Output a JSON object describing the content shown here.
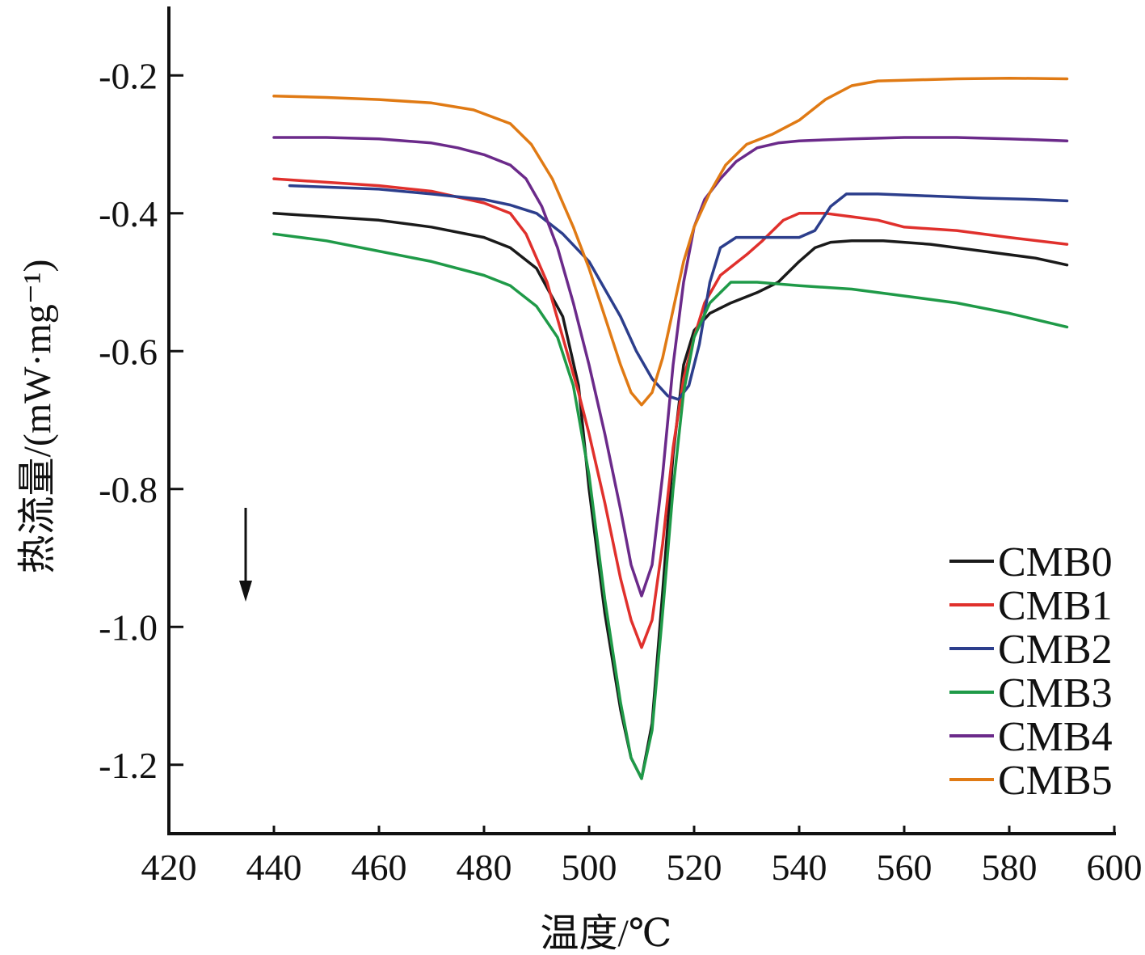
{
  "chart_data": {
    "type": "line",
    "xlabel": "温度/℃",
    "ylabel": "热流量/(mW·mg⁻¹)",
    "xlim": [
      420,
      600
    ],
    "ylim": [
      -1.3,
      -0.1
    ],
    "xticks": [
      420,
      440,
      460,
      480,
      500,
      520,
      540,
      560,
      580,
      600
    ],
    "yticks": [
      -1.2,
      -1.0,
      -0.8,
      -0.6,
      -0.4,
      -0.2
    ],
    "xtick_labels": [
      "420",
      "440",
      "460",
      "480",
      "500",
      "520",
      "540",
      "560",
      "580",
      "600"
    ],
    "ytick_labels": [
      "-1.2",
      "-1.0",
      "-0.8",
      "-0.6",
      "-0.4",
      "-0.2"
    ],
    "grid": false,
    "legend_position": "bottom-right",
    "annotation": "downward arrow (exotherm direction)",
    "series": [
      {
        "name": "CMB0",
        "color": "#1a1a1a",
        "points": [
          [
            440,
            -0.4
          ],
          [
            450,
            -0.405
          ],
          [
            460,
            -0.41
          ],
          [
            470,
            -0.42
          ],
          [
            480,
            -0.435
          ],
          [
            485,
            -0.45
          ],
          [
            490,
            -0.48
          ],
          [
            495,
            -0.55
          ],
          [
            498,
            -0.65
          ],
          [
            500,
            -0.8
          ],
          [
            503,
            -0.98
          ],
          [
            506,
            -1.12
          ],
          [
            508,
            -1.19
          ],
          [
            510,
            -1.22
          ],
          [
            512,
            -1.14
          ],
          [
            514,
            -0.95
          ],
          [
            516,
            -0.75
          ],
          [
            518,
            -0.62
          ],
          [
            520,
            -0.57
          ],
          [
            523,
            -0.545
          ],
          [
            527,
            -0.53
          ],
          [
            532,
            -0.515
          ],
          [
            536,
            -0.5
          ],
          [
            540,
            -0.47
          ],
          [
            543,
            -0.45
          ],
          [
            546,
            -0.442
          ],
          [
            550,
            -0.44
          ],
          [
            556,
            -0.44
          ],
          [
            565,
            -0.445
          ],
          [
            575,
            -0.455
          ],
          [
            585,
            -0.465
          ],
          [
            591,
            -0.475
          ]
        ]
      },
      {
        "name": "CMB1",
        "color": "#e0302c",
        "points": [
          [
            440,
            -0.35
          ],
          [
            450,
            -0.355
          ],
          [
            460,
            -0.36
          ],
          [
            470,
            -0.368
          ],
          [
            480,
            -0.385
          ],
          [
            485,
            -0.4
          ],
          [
            488,
            -0.43
          ],
          [
            492,
            -0.5
          ],
          [
            495,
            -0.58
          ],
          [
            498,
            -0.66
          ],
          [
            500,
            -0.72
          ],
          [
            503,
            -0.82
          ],
          [
            506,
            -0.93
          ],
          [
            508,
            -0.99
          ],
          [
            510,
            -1.03
          ],
          [
            512,
            -0.99
          ],
          [
            514,
            -0.88
          ],
          [
            516,
            -0.74
          ],
          [
            518,
            -0.64
          ],
          [
            520,
            -0.58
          ],
          [
            522,
            -0.53
          ],
          [
            525,
            -0.49
          ],
          [
            530,
            -0.46
          ],
          [
            533,
            -0.44
          ],
          [
            537,
            -0.41
          ],
          [
            540,
            -0.4
          ],
          [
            545,
            -0.4
          ],
          [
            550,
            -0.405
          ],
          [
            555,
            -0.41
          ],
          [
            560,
            -0.42
          ],
          [
            570,
            -0.425
          ],
          [
            580,
            -0.435
          ],
          [
            591,
            -0.445
          ]
        ]
      },
      {
        "name": "CMB2",
        "color": "#2c3e8c",
        "points": [
          [
            443,
            -0.36
          ],
          [
            450,
            -0.362
          ],
          [
            460,
            -0.365
          ],
          [
            470,
            -0.372
          ],
          [
            480,
            -0.38
          ],
          [
            485,
            -0.388
          ],
          [
            490,
            -0.4
          ],
          [
            495,
            -0.43
          ],
          [
            500,
            -0.47
          ],
          [
            503,
            -0.51
          ],
          [
            506,
            -0.55
          ],
          [
            509,
            -0.6
          ],
          [
            512,
            -0.64
          ],
          [
            515,
            -0.665
          ],
          [
            517,
            -0.67
          ],
          [
            519,
            -0.65
          ],
          [
            521,
            -0.59
          ],
          [
            523,
            -0.5
          ],
          [
            525,
            -0.45
          ],
          [
            528,
            -0.435
          ],
          [
            533,
            -0.435
          ],
          [
            540,
            -0.435
          ],
          [
            543,
            -0.425
          ],
          [
            546,
            -0.39
          ],
          [
            549,
            -0.372
          ],
          [
            555,
            -0.372
          ],
          [
            565,
            -0.375
          ],
          [
            575,
            -0.378
          ],
          [
            585,
            -0.38
          ],
          [
            591,
            -0.382
          ]
        ]
      },
      {
        "name": "CMB3",
        "color": "#1f9a48",
        "points": [
          [
            440,
            -0.43
          ],
          [
            450,
            -0.44
          ],
          [
            460,
            -0.455
          ],
          [
            470,
            -0.47
          ],
          [
            480,
            -0.49
          ],
          [
            485,
            -0.505
          ],
          [
            490,
            -0.535
          ],
          [
            494,
            -0.58
          ],
          [
            497,
            -0.65
          ],
          [
            500,
            -0.78
          ],
          [
            503,
            -0.96
          ],
          [
            506,
            -1.11
          ],
          [
            508,
            -1.19
          ],
          [
            510,
            -1.22
          ],
          [
            512,
            -1.15
          ],
          [
            514,
            -0.98
          ],
          [
            516,
            -0.8
          ],
          [
            518,
            -0.66
          ],
          [
            520,
            -0.58
          ],
          [
            523,
            -0.53
          ],
          [
            527,
            -0.5
          ],
          [
            532,
            -0.5
          ],
          [
            540,
            -0.505
          ],
          [
            550,
            -0.51
          ],
          [
            560,
            -0.52
          ],
          [
            570,
            -0.53
          ],
          [
            580,
            -0.545
          ],
          [
            591,
            -0.565
          ]
        ]
      },
      {
        "name": "CMB4",
        "color": "#6b2a8a",
        "points": [
          [
            440,
            -0.29
          ],
          [
            450,
            -0.29
          ],
          [
            460,
            -0.292
          ],
          [
            470,
            -0.298
          ],
          [
            475,
            -0.305
          ],
          [
            480,
            -0.315
          ],
          [
            485,
            -0.33
          ],
          [
            488,
            -0.35
          ],
          [
            491,
            -0.39
          ],
          [
            494,
            -0.45
          ],
          [
            497,
            -0.53
          ],
          [
            500,
            -0.62
          ],
          [
            503,
            -0.72
          ],
          [
            506,
            -0.83
          ],
          [
            508,
            -0.91
          ],
          [
            510,
            -0.955
          ],
          [
            512,
            -0.91
          ],
          [
            514,
            -0.78
          ],
          [
            516,
            -0.62
          ],
          [
            518,
            -0.5
          ],
          [
            520,
            -0.42
          ],
          [
            522,
            -0.38
          ],
          [
            525,
            -0.35
          ],
          [
            528,
            -0.325
          ],
          [
            532,
            -0.305
          ],
          [
            536,
            -0.298
          ],
          [
            540,
            -0.295
          ],
          [
            550,
            -0.292
          ],
          [
            560,
            -0.29
          ],
          [
            570,
            -0.29
          ],
          [
            580,
            -0.292
          ],
          [
            591,
            -0.295
          ]
        ]
      },
      {
        "name": "CMB5",
        "color": "#e07a14",
        "points": [
          [
            440,
            -0.23
          ],
          [
            450,
            -0.232
          ],
          [
            460,
            -0.235
          ],
          [
            470,
            -0.24
          ],
          [
            478,
            -0.25
          ],
          [
            485,
            -0.27
          ],
          [
            489,
            -0.3
          ],
          [
            493,
            -0.35
          ],
          [
            497,
            -0.42
          ],
          [
            500,
            -0.48
          ],
          [
            503,
            -0.55
          ],
          [
            506,
            -0.62
          ],
          [
            508,
            -0.66
          ],
          [
            510,
            -0.678
          ],
          [
            512,
            -0.66
          ],
          [
            514,
            -0.61
          ],
          [
            516,
            -0.54
          ],
          [
            518,
            -0.47
          ],
          [
            520,
            -0.42
          ],
          [
            523,
            -0.37
          ],
          [
            526,
            -0.33
          ],
          [
            530,
            -0.3
          ],
          [
            535,
            -0.285
          ],
          [
            540,
            -0.265
          ],
          [
            545,
            -0.235
          ],
          [
            550,
            -0.215
          ],
          [
            555,
            -0.208
          ],
          [
            560,
            -0.207
          ],
          [
            570,
            -0.205
          ],
          [
            580,
            -0.204
          ],
          [
            591,
            -0.205
          ]
        ]
      }
    ]
  }
}
